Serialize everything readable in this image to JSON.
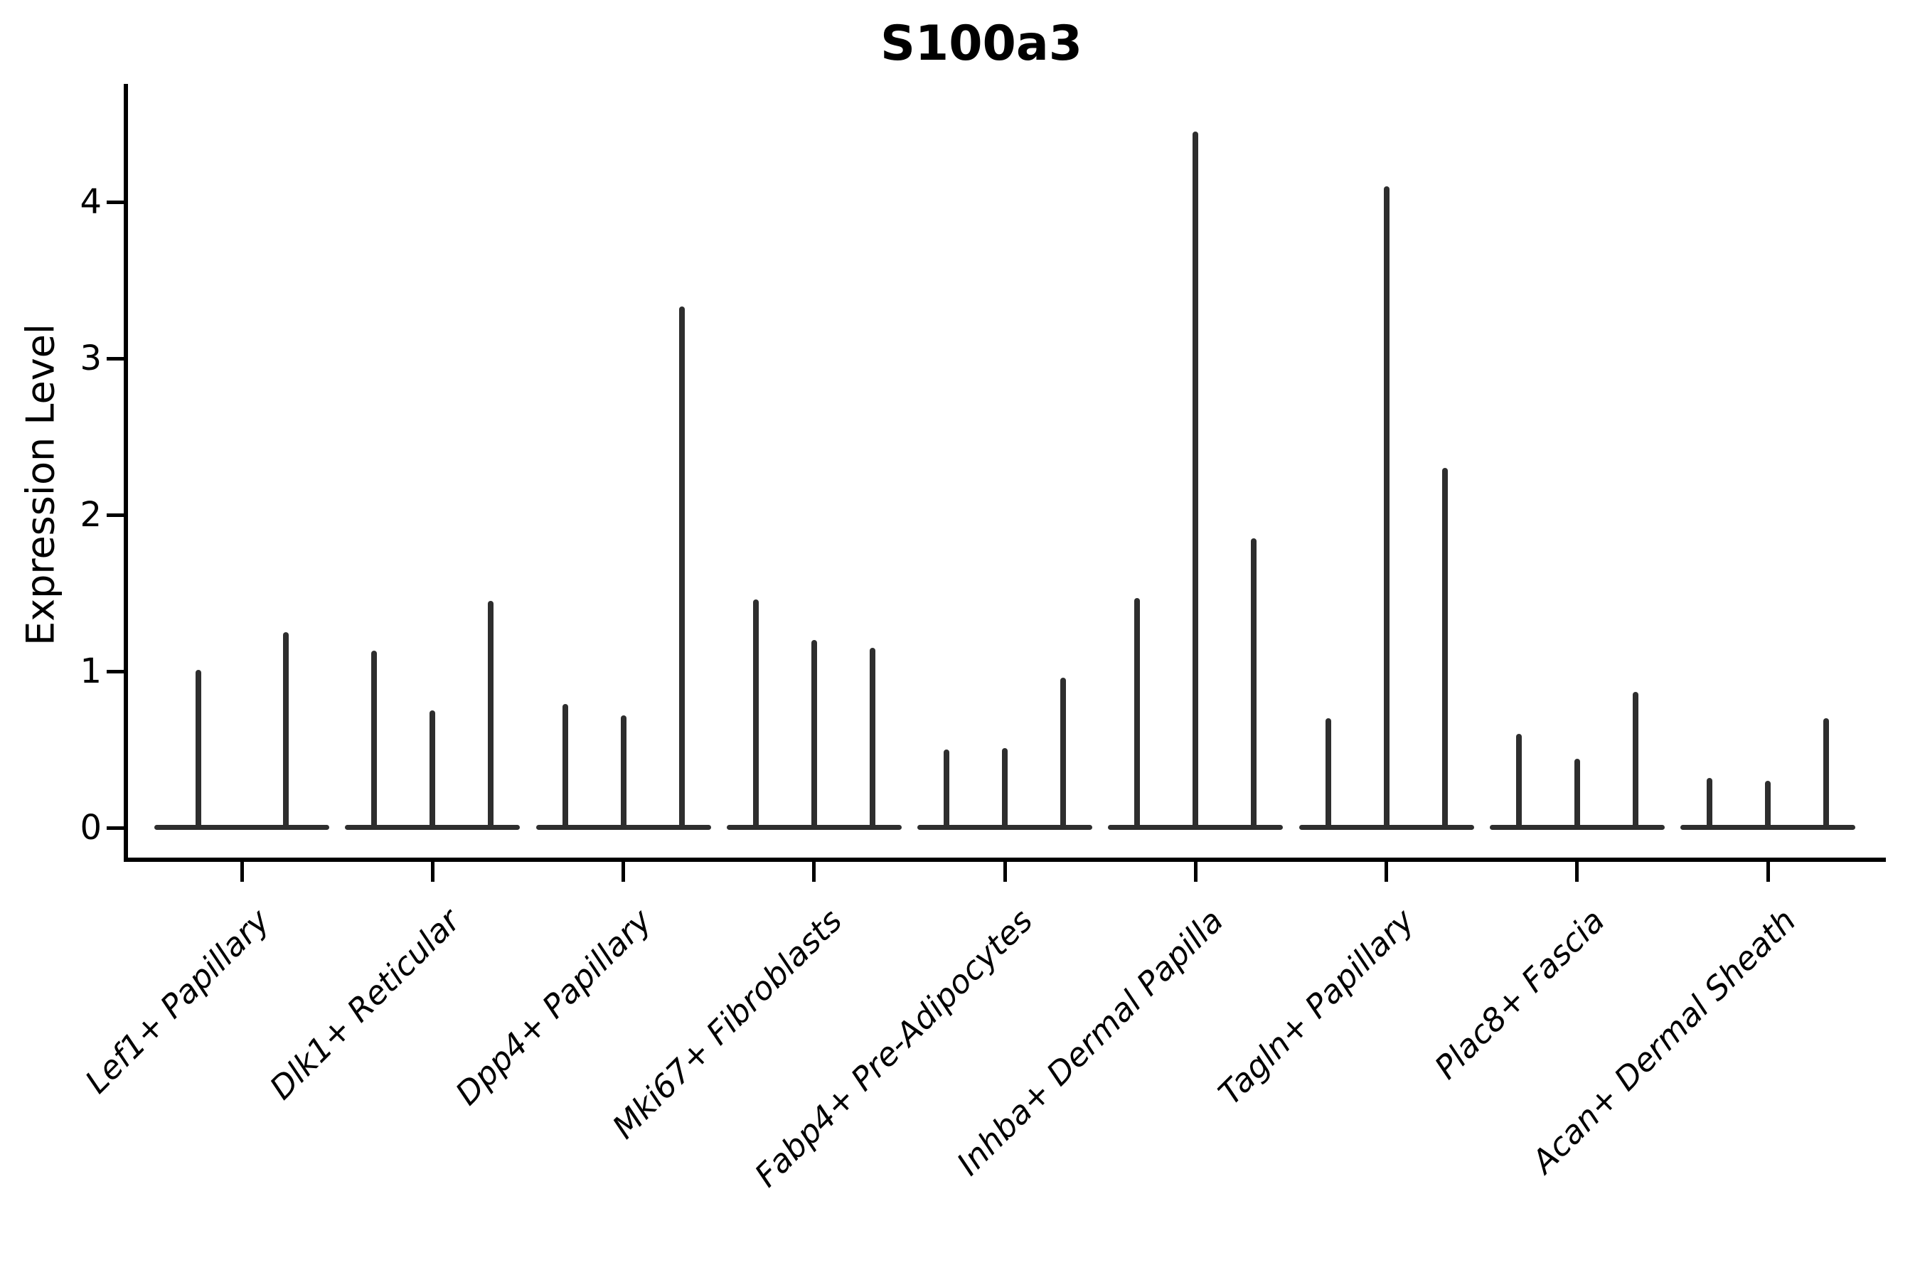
{
  "title": "S100a3",
  "ylabel": "Expression Level",
  "chart_data": {
    "type": "violin",
    "title": "S100a3",
    "ylabel": "Expression Level",
    "xlabel": "",
    "ylim": [
      0,
      4.77
    ],
    "yticks": [
      0,
      1,
      2,
      3,
      4
    ],
    "grid": false,
    "legend": "none",
    "orientation": "vertical",
    "note": "Narrow spike-like violins; value listed is the peak expression level reached by each thin violin within the group, left to right",
    "categories": [
      "Lef1+ Papillary",
      "Dlk1+ Reticular",
      "Dpp4+ Papillary",
      "Mki67+ Fibroblasts",
      "Fabp4+ Pre-Adipocytes",
      "Inhba+ Dermal Papilla",
      "Tagln+ Papillary",
      "Plac8+ Fascia",
      "Acan+ Dermal Sheath"
    ],
    "groups": [
      {
        "label": "Lef1+ Papillary",
        "violin_peaks": [
          1.01,
          1.25
        ]
      },
      {
        "label": "Dlk1+ Reticular",
        "violin_peaks": [
          1.13,
          0.75,
          1.45
        ]
      },
      {
        "label": "Dpp4+ Papillary",
        "violin_peaks": [
          0.79,
          0.72,
          3.33
        ]
      },
      {
        "label": "Mki67+ Fibroblasts",
        "violin_peaks": [
          1.46,
          1.2,
          1.15
        ]
      },
      {
        "label": "Fabp4+ Pre-Adipocytes",
        "violin_peaks": [
          0.5,
          0.51,
          0.96
        ]
      },
      {
        "label": "Inhba+ Dermal Papilla",
        "violin_peaks": [
          1.47,
          4.45,
          1.85
        ]
      },
      {
        "label": "Tagln+ Papillary",
        "violin_peaks": [
          0.7,
          4.1,
          2.3
        ]
      },
      {
        "label": "Plac8+ Fascia",
        "violin_peaks": [
          0.6,
          0.44,
          0.87
        ]
      },
      {
        "label": "Acan+ Dermal Sheath",
        "violin_peaks": [
          0.32,
          0.3,
          0.7
        ]
      }
    ],
    "colors": {
      "violin_line": "#2e2e2e",
      "axis": "#000000",
      "background": "#ffffff",
      "text": "#000000"
    }
  }
}
